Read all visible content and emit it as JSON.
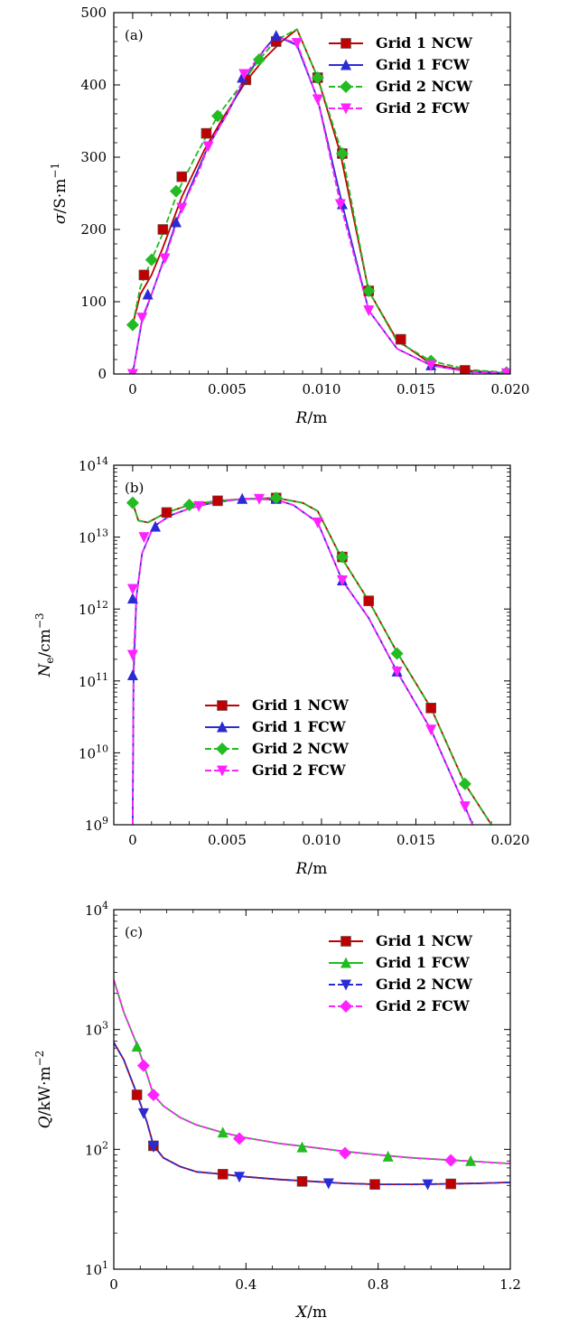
{
  "chart_data": [
    {
      "type": "line",
      "panel": "(a)",
      "xlabel_var": "R",
      "xlabel_unit": "/m",
      "ylabel_var": "σ",
      "ylabel_unit": "/S·m",
      "ylabel_exp": "−1",
      "xlim": [
        -0.001,
        0.02
      ],
      "ylim": [
        0,
        500
      ],
      "yscale": "linear",
      "xticks": [
        0,
        0.005,
        0.01,
        0.015,
        0.02
      ],
      "xtick_labels": [
        "0",
        "0.005",
        "0.010",
        "0.015",
        "0.020"
      ],
      "yticks": [
        0,
        100,
        200,
        300,
        400,
        500
      ],
      "ytick_labels": [
        "0",
        "100",
        "200",
        "300",
        "400",
        "500"
      ],
      "legend_position": "top-right",
      "series": [
        {
          "name": "Grid 1 NCW",
          "color": "#c00000",
          "dash": "solid",
          "marker": "square",
          "x": [
            0,
            0.0004,
            0.001,
            0.0016,
            0.0026,
            0.0038,
            0.0048,
            0.006,
            0.007,
            0.0078,
            0.0087,
            0.0098,
            0.011,
            0.0125,
            0.014,
            0.0158,
            0.0176,
            0.0198
          ],
          "y": [
            68,
            110,
            137,
            175,
            245,
            310,
            355,
            405,
            437,
            458,
            477,
            410,
            305,
            115,
            47,
            14,
            5,
            1
          ],
          "mx": [
            0.0006,
            0.0016,
            0.0026,
            0.0039,
            0.006,
            0.0076,
            0.0098,
            0.0111,
            0.0125,
            0.0142,
            0.0176
          ],
          "my": [
            137,
            200,
            273,
            333,
            407,
            460,
            410,
            305,
            115,
            48,
            5
          ]
        },
        {
          "name": "Grid 1 FCW",
          "color": "#2b2bd6",
          "dash": "solid",
          "marker": "triangle",
          "x": [
            0,
            0.0005,
            0.001,
            0.0016,
            0.0023,
            0.003,
            0.004,
            0.005,
            0.006,
            0.007,
            0.0076,
            0.0087,
            0.0098,
            0.0111,
            0.0125,
            0.014,
            0.0158,
            0.0178,
            0.0198
          ],
          "y": [
            0,
            75,
            110,
            155,
            210,
            255,
            315,
            360,
            410,
            450,
            468,
            455,
            380,
            235,
            88,
            35,
            12,
            3,
            1
          ],
          "mx": [
            0.0008,
            0.0023,
            0.0058,
            0.0076,
            0.0111,
            0.0158
          ],
          "my": [
            110,
            210,
            410,
            468,
            235,
            12
          ]
        },
        {
          "name": "Grid 2 NCW",
          "color": "#22bb22",
          "dash": "dashed",
          "marker": "diamond",
          "x": [
            0,
            0.0004,
            0.001,
            0.0016,
            0.0024,
            0.0034,
            0.0045,
            0.0056,
            0.0067,
            0.0076,
            0.0087,
            0.0098,
            0.0111,
            0.0125,
            0.014,
            0.0158,
            0.0178,
            0.0198
          ],
          "y": [
            68,
            120,
            158,
            195,
            253,
            305,
            357,
            395,
            435,
            462,
            477,
            410,
            305,
            115,
            45,
            18,
            6,
            2
          ],
          "mx": [
            0,
            0.001,
            0.0023,
            0.0045,
            0.0067,
            0.0098,
            0.0111,
            0.0125,
            0.0158,
            0.0198
          ],
          "my": [
            68,
            158,
            253,
            357,
            435,
            410,
            305,
            115,
            18,
            2
          ]
        },
        {
          "name": "Grid 2 FCW",
          "color": "#ff22ff",
          "dash": "dashed",
          "marker": "tri-down",
          "x": [
            0,
            0.0005,
            0.001,
            0.0017,
            0.0026,
            0.0035,
            0.004,
            0.005,
            0.006,
            0.007,
            0.0078,
            0.0087,
            0.0098,
            0.011,
            0.0125,
            0.014,
            0.0158,
            0.0178,
            0.0198
          ],
          "y": [
            0,
            78,
            110,
            160,
            230,
            280,
            315,
            360,
            415,
            450,
            465,
            458,
            380,
            235,
            88,
            35,
            12,
            3,
            1
          ],
          "mx": [
            0,
            0.0005,
            0.0017,
            0.0026,
            0.004,
            0.0059,
            0.0087,
            0.0098,
            0.011,
            0.0125,
            0.0158,
            0.0198
          ],
          "my": [
            0,
            78,
            160,
            230,
            315,
            415,
            458,
            380,
            235,
            88,
            12,
            1
          ]
        }
      ],
      "legend_entries": [
        "Grid 1 NCW",
        "Grid 1 FCW",
        "Grid 2 NCW",
        "Grid 2 FCW"
      ]
    },
    {
      "type": "line",
      "panel": "(b)",
      "xlabel_var": "R",
      "xlabel_unit": "/m",
      "ylabel_var": "N",
      "ylabel_sub": "e",
      "ylabel_unit": "/cm",
      "ylabel_exp": "−3",
      "xlim": [
        -0.001,
        0.02
      ],
      "ylim": [
        1000000000.0,
        100000000000000.0
      ],
      "yscale": "log",
      "xticks": [
        0,
        0.005,
        0.01,
        0.015,
        0.02
      ],
      "xtick_labels": [
        "0",
        "0.005",
        "0.010",
        "0.015",
        "0.020"
      ],
      "yticks": [
        1000000000.0,
        10000000000.0,
        100000000000.0,
        1000000000000.0,
        10000000000000.0,
        100000000000000.0
      ],
      "ytick_base": [
        "10",
        "10",
        "10",
        "10",
        "10",
        "10"
      ],
      "ytick_exp": [
        "9",
        "10",
        "11",
        "12",
        "13",
        "14"
      ],
      "legend_position": "center-left",
      "series": [
        {
          "name": "Grid 1 NCW",
          "color": "#c00000",
          "dash": "solid",
          "marker": "square",
          "x": [
            0,
            0.0003,
            0.0008,
            0.0018,
            0.003,
            0.0045,
            0.006,
            0.0076,
            0.009,
            0.0098,
            0.011,
            0.0125,
            0.014,
            0.0158,
            0.0176,
            0.019
          ],
          "y": [
            30000000000000.0,
            17000000000000.0,
            16000000000000.0,
            22000000000000.0,
            28000000000000.0,
            32000000000000.0,
            34000000000000.0,
            35000000000000.0,
            30000000000000.0,
            23000000000000.0,
            5500000000000.0,
            1300000000000.0,
            250000000000.0,
            42000000000.0,
            3700000000.0,
            1000000000.0
          ],
          "mx": [
            0.0018,
            0.0045,
            0.0076,
            0.0111,
            0.0125,
            0.0158
          ],
          "my": [
            22000000000000.0,
            32000000000000.0,
            35000000000000.0,
            5300000000000.0,
            1300000000000.0,
            42000000000.0
          ]
        },
        {
          "name": "Grid 1 FCW",
          "color": "#2b2bd6",
          "dash": "solid",
          "marker": "triangle",
          "x": [
            0,
            5e-05,
            0.0002,
            0.0005,
            0.0011,
            0.002,
            0.003,
            0.004,
            0.005,
            0.0058,
            0.0065,
            0.0076,
            0.0085,
            0.0098,
            0.0111,
            0.0125,
            0.014,
            0.0158,
            0.0176,
            0.018
          ],
          "y": [
            1000000000.0,
            120000000000.0,
            1500000000000.0,
            6000000000000.0,
            14000000000000.0,
            20000000000000.0,
            25000000000000.0,
            29000000000000.0,
            32000000000000.0,
            34000000000000.0,
            34000000000000.0,
            33000000000000.0,
            28000000000000.0,
            16000000000000.0,
            2500000000000.0,
            750000000000.0,
            135000000000.0,
            21000000000.0,
            1800000000.0,
            1000000000.0
          ],
          "mx": [
            0,
            0,
            0.0012,
            0.0058,
            0.0076,
            0.0111,
            0.014
          ],
          "my": [
            120000000000.0,
            1400000000000.0,
            14000000000000.0,
            34000000000000.0,
            34000000000000.0,
            2500000000000.0,
            135000000000.0
          ]
        },
        {
          "name": "Grid 2 NCW",
          "color": "#22bb22",
          "dash": "dashed",
          "marker": "diamond",
          "x": [
            0,
            0.0003,
            0.0008,
            0.0018,
            0.003,
            0.0045,
            0.006,
            0.0076,
            0.009,
            0.0098,
            0.011,
            0.0125,
            0.014,
            0.0158,
            0.0176,
            0.019
          ],
          "y": [
            30000000000000.0,
            17000000000000.0,
            16000000000000.0,
            22000000000000.0,
            28000000000000.0,
            32000000000000.0,
            34000000000000.0,
            35000000000000.0,
            30000000000000.0,
            23000000000000.0,
            5500000000000.0,
            1300000000000.0,
            250000000000.0,
            42000000000.0,
            3700000000.0,
            1000000000.0
          ],
          "mx": [
            0,
            0.003,
            0.0076,
            0.0111,
            0.014,
            0.0176
          ],
          "my": [
            30000000000000.0,
            28000000000000.0,
            35000000000000.0,
            5300000000000.0,
            240000000000.0,
            3700000000.0
          ]
        },
        {
          "name": "Grid 2 FCW",
          "color": "#ff22ff",
          "dash": "dashed",
          "marker": "tri-down",
          "x": [
            0,
            5e-05,
            0.0002,
            0.0005,
            0.0011,
            0.002,
            0.003,
            0.004,
            0.005,
            0.0058,
            0.0065,
            0.0076,
            0.0085,
            0.0098,
            0.0111,
            0.0125,
            0.014,
            0.0158,
            0.0176,
            0.018
          ],
          "y": [
            1000000000.0,
            230000000000.0,
            1500000000000.0,
            6000000000000.0,
            14000000000000.0,
            20000000000000.0,
            25000000000000.0,
            29000000000000.0,
            32000000000000.0,
            34000000000000.0,
            34000000000000.0,
            33000000000000.0,
            28000000000000.0,
            16000000000000.0,
            2500000000000.0,
            750000000000.0,
            135000000000.0,
            21000000000.0,
            1800000000.0,
            1000000000.0
          ],
          "mx": [
            0,
            0,
            0.0006,
            0.0035,
            0.0067,
            0.0098,
            0.0111,
            0.014,
            0.0158,
            0.0176
          ],
          "my": [
            230000000000.0,
            1900000000000.0,
            10000000000000.0,
            27000000000000.0,
            34000000000000.0,
            16000000000000.0,
            2500000000000.0,
            135000000000.0,
            21000000000.0,
            1800000000.0
          ]
        }
      ],
      "legend_entries": [
        "Grid 1 NCW",
        "Grid 1 FCW",
        "Grid 2 NCW",
        "Grid 2 FCW"
      ]
    },
    {
      "type": "line",
      "panel": "(c)",
      "xlabel_var": "X",
      "xlabel_unit": "/m",
      "ylabel_var": "Q",
      "ylabel_unit": "/kW·m",
      "ylabel_exp": "−2",
      "xlim": [
        0,
        1.2
      ],
      "ylim": [
        10,
        10000
      ],
      "yscale": "log",
      "xticks": [
        0,
        0.4,
        0.8,
        1.2
      ],
      "xtick_labels": [
        "0",
        "0.4",
        "0.8",
        "1.2"
      ],
      "yticks": [
        10,
        100,
        1000,
        10000
      ],
      "ytick_base": [
        "10",
        "10",
        "10",
        "10"
      ],
      "ytick_exp": [
        "1",
        "2",
        "3",
        "4"
      ],
      "legend_position": "top-right",
      "series": [
        {
          "name": "Grid 1 NCW",
          "color": "#c00000",
          "dash": "solid",
          "marker": "square",
          "x": [
            0,
            0.03,
            0.07,
            0.1,
            0.12,
            0.15,
            0.2,
            0.25,
            0.33,
            0.4,
            0.5,
            0.6,
            0.7,
            0.8,
            0.9,
            1.0,
            1.1,
            1.2
          ],
          "y": [
            780,
            560,
            290,
            170,
            108,
            85,
            72,
            65,
            62,
            59,
            56,
            54,
            52,
            51,
            51,
            51.5,
            52,
            53
          ],
          "mx": [
            0.07,
            0.12,
            0.33,
            0.57,
            0.79,
            1.02
          ],
          "my": [
            285,
            107,
            62,
            54,
            51,
            51.5
          ]
        },
        {
          "name": "Grid 1 FCW",
          "color": "#22bb22",
          "dash": "solid",
          "marker": "triangle",
          "x": [
            0,
            0.03,
            0.07,
            0.09,
            0.12,
            0.15,
            0.2,
            0.25,
            0.33,
            0.4,
            0.5,
            0.6,
            0.7,
            0.8,
            0.9,
            1.0,
            1.1,
            1.2
          ],
          "y": [
            2600,
            1400,
            750,
            520,
            285,
            230,
            185,
            160,
            138,
            125,
            112,
            104,
            96,
            90,
            85,
            82,
            79,
            76
          ],
          "mx": [
            0.07,
            0.33,
            0.57,
            0.83,
            1.08
          ],
          "my": [
            720,
            138,
            104,
            87,
            80
          ]
        },
        {
          "name": "Grid 2 NCW",
          "color": "#2b2bd6",
          "dash": "dashed",
          "marker": "tri-down",
          "x": [
            0,
            0.03,
            0.07,
            0.1,
            0.12,
            0.15,
            0.2,
            0.25,
            0.33,
            0.4,
            0.5,
            0.6,
            0.7,
            0.8,
            0.9,
            1.0,
            1.1,
            1.2
          ],
          "y": [
            780,
            560,
            290,
            170,
            108,
            85,
            72,
            65,
            62,
            59,
            56,
            54,
            52,
            51,
            51,
            51.5,
            52,
            53
          ],
          "mx": [
            0.09,
            0.12,
            0.38,
            0.65,
            0.95
          ],
          "my": [
            200,
            105,
            59,
            52,
            51
          ]
        },
        {
          "name": "Grid 2 FCW",
          "color": "#ff22ff",
          "dash": "dashed",
          "marker": "diamond",
          "x": [
            0,
            0.03,
            0.07,
            0.09,
            0.12,
            0.15,
            0.2,
            0.25,
            0.33,
            0.4,
            0.5,
            0.6,
            0.7,
            0.8,
            0.9,
            1.0,
            1.1,
            1.2
          ],
          "y": [
            2600,
            1400,
            750,
            520,
            285,
            230,
            185,
            160,
            138,
            125,
            112,
            104,
            96,
            90,
            85,
            82,
            79,
            76
          ],
          "mx": [
            0.09,
            0.12,
            0.38,
            0.7,
            1.02
          ],
          "my": [
            500,
            285,
            123,
            93,
            81
          ]
        }
      ],
      "legend_entries": [
        "Grid 1 NCW",
        "Grid 1 FCW",
        "Grid 2 NCW",
        "Grid 2 FCW"
      ]
    }
  ]
}
